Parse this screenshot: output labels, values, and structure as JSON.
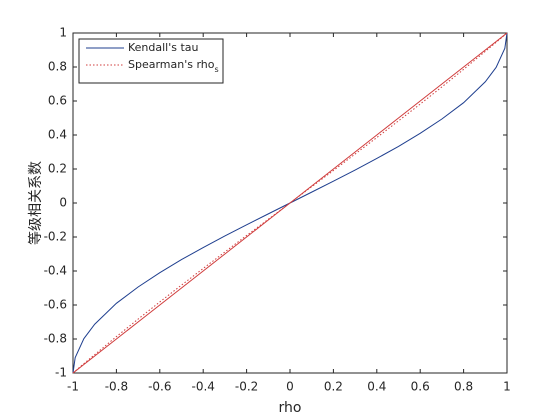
{
  "chart_data": {
    "type": "line",
    "x_label": "rho",
    "y_label": "等级相关系数",
    "x": [
      -1,
      -0.99,
      -0.95,
      -0.9,
      -0.8,
      -0.7,
      -0.6,
      -0.5,
      -0.4,
      -0.3,
      -0.2,
      -0.1,
      0,
      0.1,
      0.2,
      0.3,
      0.4,
      0.5,
      0.6,
      0.7,
      0.8,
      0.9,
      0.95,
      0.99,
      1
    ],
    "series": [
      {
        "name": "Kendall's tau",
        "color": "#1f3f8f",
        "dash": "solid",
        "values": [
          -1,
          -0.91,
          -0.798,
          -0.713,
          -0.59,
          -0.494,
          -0.41,
          -0.333,
          -0.262,
          -0.194,
          -0.128,
          -0.064,
          0,
          0.064,
          0.128,
          0.194,
          0.262,
          0.333,
          0.41,
          0.494,
          0.59,
          0.713,
          0.798,
          0.91,
          1
        ]
      },
      {
        "name": "Spearman's rho",
        "name_subscript": "s",
        "color": "#d03c3c",
        "dash": "dotted",
        "values": [
          -1,
          -0.989,
          -0.945,
          -0.892,
          -0.786,
          -0.683,
          -0.582,
          -0.483,
          -0.385,
          -0.288,
          -0.191,
          -0.096,
          0,
          0.096,
          0.191,
          0.288,
          0.385,
          0.483,
          0.582,
          0.683,
          0.786,
          0.892,
          0.945,
          0.989,
          1
        ]
      },
      {
        "color": "#d03c3c",
        "dash": "solid",
        "values": [
          -1,
          -0.99,
          -0.95,
          -0.9,
          -0.8,
          -0.7,
          -0.6,
          -0.5,
          -0.4,
          -0.3,
          -0.2,
          -0.1,
          0,
          0.1,
          0.2,
          0.3,
          0.4,
          0.5,
          0.6,
          0.7,
          0.8,
          0.9,
          0.95,
          0.99,
          1
        ]
      }
    ],
    "xlim": [
      -1,
      1
    ],
    "xticks": [
      -1,
      -0.8,
      -0.6,
      -0.4,
      -0.2,
      0,
      0.2,
      0.4,
      0.6,
      0.8,
      1
    ],
    "ylim": [
      -1,
      1
    ],
    "yticks": [
      -1,
      -0.8,
      -0.6,
      -0.4,
      -0.2,
      0,
      0.2,
      0.4,
      0.6,
      0.8,
      1
    ],
    "grid": false,
    "legend": "upper left"
  }
}
